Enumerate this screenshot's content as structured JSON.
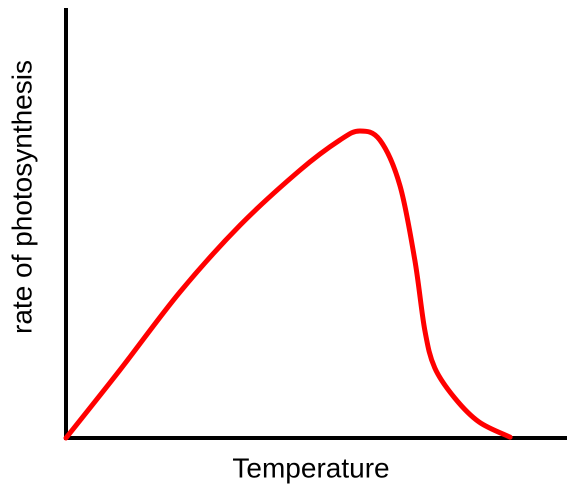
{
  "chart_data": {
    "type": "line",
    "x_label": "Temperature",
    "y_label": "rate of photosynthesis",
    "x": [
      0,
      10.8,
      22.8,
      34.9,
      46.9,
      54.9,
      58.9,
      62.9,
      66.9,
      69.9,
      71.9,
      73.9,
      77.9,
      82.8,
      89.0
    ],
    "series": [
      {
        "color": "#ff0000",
        "values": [
          0,
          15.8,
          33.9,
          49.5,
          62.3,
          69.3,
          71.4,
          69.3,
          58.8,
          41.4,
          25.1,
          16.3,
          9.3,
          3.7,
          0.2
        ]
      }
    ],
    "xlim": [
      0,
      100
    ],
    "ylim": [
      0,
      100
    ]
  }
}
